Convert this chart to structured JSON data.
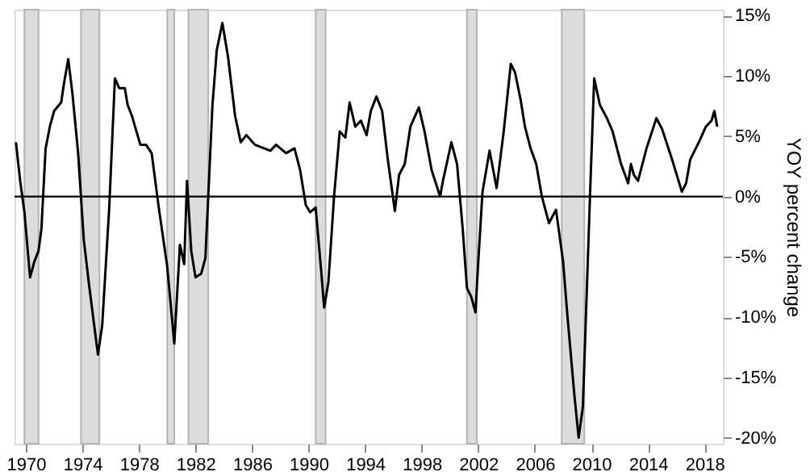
{
  "chart_data": {
    "type": "line",
    "ylabel": "YOY percent change",
    "x": [
      1969.3,
      1969.6,
      1969.9,
      1970.3,
      1970.6,
      1970.9,
      1971.1,
      1971.4,
      1971.7,
      1972.0,
      1972.5,
      1972.7,
      1973.0,
      1973.3,
      1973.7,
      1974.1,
      1974.5,
      1975.1,
      1975.4,
      1975.9,
      1976.3,
      1976.6,
      1977.0,
      1977.2,
      1977.5,
      1978.1,
      1978.5,
      1978.9,
      1979.4,
      1980.0,
      1980.5,
      1980.9,
      1981.2,
      1981.4,
      1981.7,
      1982.0,
      1982.4,
      1982.7,
      1983.2,
      1983.5,
      1983.9,
      1984.3,
      1984.8,
      1985.2,
      1985.6,
      1986.2,
      1987.3,
      1987.7,
      1988.4,
      1989.0,
      1989.4,
      1989.8,
      1990.1,
      1990.5,
      1990.9,
      1991.1,
      1991.4,
      1991.8,
      1992.2,
      1992.6,
      1992.9,
      1993.3,
      1993.7,
      1994.1,
      1994.4,
      1994.8,
      1995.2,
      1995.6,
      1996.1,
      1996.4,
      1996.8,
      1997.2,
      1997.8,
      1998.2,
      1998.7,
      1999.3,
      1999.5,
      2000.1,
      2000.5,
      2000.9,
      2001.2,
      2001.5,
      2001.8,
      2002.0,
      2002.3,
      2002.8,
      2003.3,
      2003.8,
      2004.3,
      2004.6,
      2005.0,
      2005.3,
      2005.7,
      2006.1,
      2006.5,
      2007.0,
      2007.5,
      2008.0,
      2008.3,
      2008.8,
      2009.1,
      2009.4,
      2009.9,
      2010.2,
      2010.6,
      2011.1,
      2011.5,
      2012.1,
      2012.6,
      2012.8,
      2013.0,
      2013.3,
      2013.9,
      2014.6,
      2015.0,
      2015.7,
      2016.4,
      2016.7,
      2017.0,
      2017.6,
      2018.1,
      2018.5,
      2018.7,
      2018.9
    ],
    "series": [
      {
        "color": "#000000",
        "values": [
          4.5,
          1.3,
          -1.3,
          -6.7,
          -5.4,
          -4.5,
          -2.7,
          4.0,
          5.8,
          7.1,
          7.8,
          9.4,
          11.4,
          8.5,
          3.6,
          -3.6,
          -7.6,
          -13.1,
          -10.7,
          -0.9,
          9.8,
          9.0,
          9.0,
          7.6,
          6.7,
          4.3,
          4.3,
          3.6,
          -0.9,
          -5.8,
          -12.2,
          -4.0,
          -5.6,
          1.3,
          -4.5,
          -6.7,
          -6.4,
          -5.1,
          7.6,
          12.1,
          14.4,
          11.6,
          6.7,
          4.5,
          5.1,
          4.3,
          3.8,
          4.3,
          3.6,
          4.0,
          2.2,
          -0.7,
          -1.3,
          -0.9,
          -6.3,
          -9.2,
          -7.1,
          0,
          5.4,
          4.9,
          7.8,
          5.8,
          6.3,
          5.1,
          7.1,
          8.3,
          7.1,
          3.1,
          -1.2,
          1.8,
          2.7,
          5.8,
          7.4,
          5.4,
          2.2,
          0,
          1.3,
          4.5,
          2.7,
          -2.7,
          -7.6,
          -8.3,
          -9.6,
          -5.4,
          0.4,
          3.8,
          0.7,
          5.4,
          11.0,
          10.3,
          8.0,
          5.8,
          4.0,
          2.7,
          0,
          -2.2,
          -1.1,
          -5.4,
          -9.8,
          -16.5,
          -20.0,
          -17.4,
          0,
          9.8,
          7.6,
          6.5,
          5.4,
          2.7,
          1.1,
          2.7,
          1.8,
          1.3,
          4.0,
          6.5,
          5.6,
          3.1,
          0.4,
          1.1,
          3.1,
          4.5,
          5.8,
          6.3,
          7.1,
          5.8
        ]
      }
    ],
    "xlim": [
      1969.2,
      2019.3
    ],
    "xticks": [
      1970,
      1974,
      1978,
      1982,
      1986,
      1990,
      1994,
      1998,
      2002,
      2006,
      2010,
      2014,
      2018
    ],
    "ylim": [
      -20.5,
      15.5
    ],
    "yticks": [
      {
        "value": 15,
        "label": "15%"
      },
      {
        "value": 10,
        "label": "10%"
      },
      {
        "value": 5,
        "label": "5%"
      },
      {
        "value": 0,
        "label": "0%"
      },
      {
        "value": -5,
        "label": "-5%"
      },
      {
        "value": -10,
        "label": "-10%"
      },
      {
        "value": -15,
        "label": "-15%"
      },
      {
        "value": -20,
        "label": "-20%"
      }
    ],
    "ref_lines": [
      {
        "axis": "y",
        "value": 0,
        "color": "#000000"
      }
    ],
    "bands": [
      {
        "axis": "x",
        "from": 1969.9,
        "to": 1970.9,
        "color": "#dcdcdc"
      },
      {
        "axis": "x",
        "from": 1973.9,
        "to": 1975.2,
        "color": "#dcdcdc"
      },
      {
        "axis": "x",
        "from": 1980.0,
        "to": 1980.5,
        "color": "#dcdcdc"
      },
      {
        "axis": "x",
        "from": 1981.5,
        "to": 1982.9,
        "color": "#dcdcdc"
      },
      {
        "axis": "x",
        "from": 1990.5,
        "to": 1991.2,
        "color": "#dcdcdc"
      },
      {
        "axis": "x",
        "from": 2001.2,
        "to": 2001.9,
        "color": "#dcdcdc"
      },
      {
        "axis": "x",
        "from": 2007.9,
        "to": 2009.5,
        "color": "#dcdcdc"
      }
    ],
    "grid": false
  }
}
